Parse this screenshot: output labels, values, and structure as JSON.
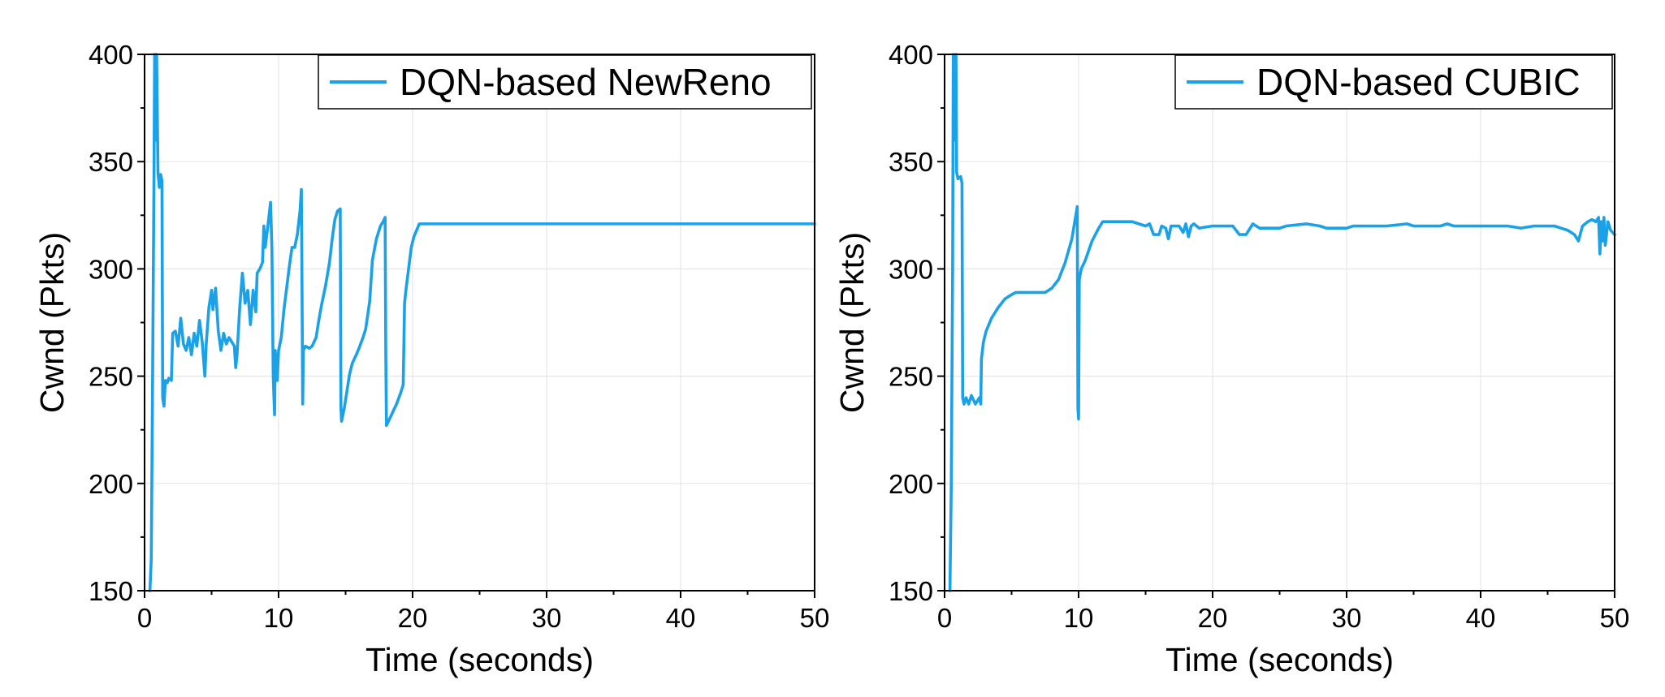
{
  "chart_data": [
    {
      "type": "line",
      "xlabel": "Time (seconds)",
      "ylabel": "Cwnd (Pkts)",
      "xlim": [
        0,
        50
      ],
      "ylim": [
        150,
        400
      ],
      "xticks": [
        0,
        10,
        20,
        30,
        40,
        50
      ],
      "yticks": [
        150,
        200,
        250,
        300,
        350,
        400
      ],
      "grid": true,
      "legend_position": "top-right",
      "series": [
        {
          "name": "DQN-based NewReno",
          "color": "#1ba1e8",
          "points": [
            [
              0.4,
              150
            ],
            [
              0.5,
              165
            ],
            [
              0.6,
              250
            ],
            [
              0.7,
              340
            ],
            [
              0.75,
              400
            ],
            [
              0.85,
              360
            ],
            [
              0.9,
              400
            ],
            [
              1.0,
              345
            ],
            [
              1.1,
              338
            ],
            [
              1.2,
              344
            ],
            [
              1.3,
              341
            ],
            [
              1.35,
              240
            ],
            [
              1.45,
              236
            ],
            [
              1.55,
              248
            ],
            [
              1.7,
              247
            ],
            [
              1.8,
              249
            ],
            [
              2.0,
              248
            ],
            [
              2.1,
              270
            ],
            [
              2.3,
              271
            ],
            [
              2.5,
              264
            ],
            [
              2.7,
              277
            ],
            [
              2.9,
              265
            ],
            [
              3.1,
              262
            ],
            [
              3.3,
              268
            ],
            [
              3.5,
              260
            ],
            [
              3.7,
              270
            ],
            [
              3.9,
              264
            ],
            [
              4.1,
              276
            ],
            [
              4.3,
              266
            ],
            [
              4.5,
              250
            ],
            [
              4.6,
              265
            ],
            [
              4.8,
              282
            ],
            [
              5.0,
              290
            ],
            [
              5.1,
              281
            ],
            [
              5.3,
              291
            ],
            [
              5.5,
              271
            ],
            [
              5.7,
              262
            ],
            [
              5.9,
              270
            ],
            [
              6.1,
              265
            ],
            [
              6.3,
              268
            ],
            [
              6.5,
              266
            ],
            [
              6.7,
              264
            ],
            [
              6.8,
              254
            ],
            [
              6.9,
              260
            ],
            [
              7.1,
              282
            ],
            [
              7.3,
              298
            ],
            [
              7.5,
              284
            ],
            [
              7.7,
              290
            ],
            [
              7.9,
              274
            ],
            [
              8.1,
              290
            ],
            [
              8.3,
              280
            ],
            [
              8.4,
              298
            ],
            [
              8.6,
              300
            ],
            [
              8.8,
              303
            ],
            [
              8.9,
              320
            ],
            [
              9.0,
              310
            ],
            [
              9.2,
              320
            ],
            [
              9.4,
              331
            ],
            [
              9.5,
              310
            ],
            [
              9.6,
              250
            ],
            [
              9.7,
              232
            ],
            [
              9.75,
              262
            ],
            [
              9.9,
              248
            ],
            [
              10.0,
              262
            ],
            [
              10.2,
              268
            ],
            [
              10.4,
              281
            ],
            [
              10.6,
              291
            ],
            [
              10.8,
              301
            ],
            [
              11.0,
              310
            ],
            [
              11.2,
              310
            ],
            [
              11.4,
              316
            ],
            [
              11.6,
              327
            ],
            [
              11.7,
              337
            ],
            [
              11.75,
              290
            ],
            [
              11.8,
              237
            ],
            [
              11.85,
              262
            ],
            [
              12.0,
              264
            ],
            [
              12.3,
              263
            ],
            [
              12.5,
              264
            ],
            [
              12.8,
              268
            ],
            [
              13.0,
              276
            ],
            [
              13.2,
              283
            ],
            [
              13.5,
              292
            ],
            [
              13.8,
              303
            ],
            [
              14.0,
              314
            ],
            [
              14.2,
              323
            ],
            [
              14.4,
              327
            ],
            [
              14.6,
              328
            ],
            [
              14.65,
              236
            ],
            [
              14.7,
              229
            ],
            [
              14.9,
              235
            ],
            [
              15.1,
              243
            ],
            [
              15.3,
              251
            ],
            [
              15.5,
              256
            ],
            [
              15.8,
              260
            ],
            [
              16.0,
              263
            ],
            [
              16.3,
              268
            ],
            [
              16.5,
              272
            ],
            [
              16.8,
              285
            ],
            [
              17.0,
              304
            ],
            [
              17.3,
              314
            ],
            [
              17.6,
              320
            ],
            [
              17.8,
              322
            ],
            [
              17.95,
              324
            ],
            [
              18.0,
              260
            ],
            [
              18.05,
              227
            ],
            [
              18.2,
              229
            ],
            [
              18.5,
              233
            ],
            [
              18.8,
              237
            ],
            [
              19.1,
              242
            ],
            [
              19.3,
              246
            ],
            [
              19.4,
              284
            ],
            [
              19.5,
              290
            ],
            [
              19.7,
              300
            ],
            [
              19.9,
              310
            ],
            [
              20.1,
              315
            ],
            [
              20.3,
              318
            ],
            [
              20.5,
              321
            ],
            [
              50.0,
              321
            ]
          ]
        }
      ]
    },
    {
      "type": "line",
      "xlabel": "Time (seconds)",
      "ylabel": "Cwnd (Pkts)",
      "xlim": [
        0,
        50
      ],
      "ylim": [
        150,
        400
      ],
      "xticks": [
        0,
        10,
        20,
        30,
        40,
        50
      ],
      "yticks": [
        150,
        200,
        250,
        300,
        350,
        400
      ],
      "grid": true,
      "legend_position": "top-right",
      "series": [
        {
          "name": "DQN-based CUBIC",
          "color": "#1ba1e8",
          "points": [
            [
              0.4,
              150
            ],
            [
              0.5,
              200
            ],
            [
              0.6,
              300
            ],
            [
              0.65,
              400
            ],
            [
              0.75,
              360
            ],
            [
              0.85,
              400
            ],
            [
              0.9,
              345
            ],
            [
              1.0,
              342
            ],
            [
              1.2,
              343
            ],
            [
              1.3,
              340
            ],
            [
              1.35,
              240
            ],
            [
              1.45,
              237
            ],
            [
              1.6,
              240
            ],
            [
              1.8,
              237
            ],
            [
              2.0,
              241
            ],
            [
              2.3,
              237
            ],
            [
              2.6,
              240
            ],
            [
              2.7,
              237
            ],
            [
              2.75,
              258
            ],
            [
              2.9,
              266
            ],
            [
              3.1,
              271
            ],
            [
              3.5,
              277
            ],
            [
              4.0,
              282
            ],
            [
              4.5,
              286
            ],
            [
              5.0,
              288
            ],
            [
              5.3,
              289
            ],
            [
              7.5,
              289
            ],
            [
              8.0,
              291
            ],
            [
              8.5,
              295
            ],
            [
              9.0,
              303
            ],
            [
              9.5,
              314
            ],
            [
              9.9,
              329
            ],
            [
              9.95,
              235
            ],
            [
              10.0,
              230
            ],
            [
              10.05,
              295
            ],
            [
              10.2,
              300
            ],
            [
              10.5,
              304
            ],
            [
              11.0,
              313
            ],
            [
              11.5,
              319
            ],
            [
              11.8,
              322
            ],
            [
              14.0,
              322
            ],
            [
              14.5,
              321
            ],
            [
              15.0,
              320
            ],
            [
              15.3,
              321
            ],
            [
              15.6,
              316
            ],
            [
              16.0,
              316
            ],
            [
              16.2,
              320
            ],
            [
              16.5,
              319
            ],
            [
              16.7,
              314
            ],
            [
              16.9,
              320
            ],
            [
              17.5,
              320
            ],
            [
              17.8,
              317
            ],
            [
              18.0,
              321
            ],
            [
              18.2,
              315
            ],
            [
              18.4,
              320
            ],
            [
              18.6,
              321
            ],
            [
              19.0,
              319
            ],
            [
              20.0,
              320
            ],
            [
              21.5,
              320
            ],
            [
              22.0,
              316
            ],
            [
              22.5,
              316
            ],
            [
              22.8,
              319
            ],
            [
              23.0,
              321
            ],
            [
              23.5,
              319
            ],
            [
              25.0,
              319
            ],
            [
              25.5,
              320
            ],
            [
              27.0,
              321
            ],
            [
              28.0,
              320
            ],
            [
              28.5,
              319
            ],
            [
              30.0,
              319
            ],
            [
              30.5,
              320
            ],
            [
              33.0,
              320
            ],
            [
              34.5,
              321
            ],
            [
              35.0,
              320
            ],
            [
              37.0,
              320
            ],
            [
              37.5,
              321
            ],
            [
              38.0,
              320
            ],
            [
              42.0,
              320
            ],
            [
              43.0,
              319
            ],
            [
              44.0,
              320
            ],
            [
              45.5,
              320
            ],
            [
              46.5,
              318
            ],
            [
              47.0,
              316
            ],
            [
              47.3,
              313
            ],
            [
              47.6,
              320
            ],
            [
              48.0,
              322
            ],
            [
              48.3,
              323
            ],
            [
              48.6,
              322
            ],
            [
              48.8,
              324
            ],
            [
              48.9,
              307
            ],
            [
              49.0,
              322
            ],
            [
              49.1,
              313
            ],
            [
              49.2,
              324
            ],
            [
              49.3,
              311
            ],
            [
              49.5,
              322
            ],
            [
              49.7,
              318
            ],
            [
              50.0,
              316
            ]
          ]
        }
      ]
    }
  ]
}
